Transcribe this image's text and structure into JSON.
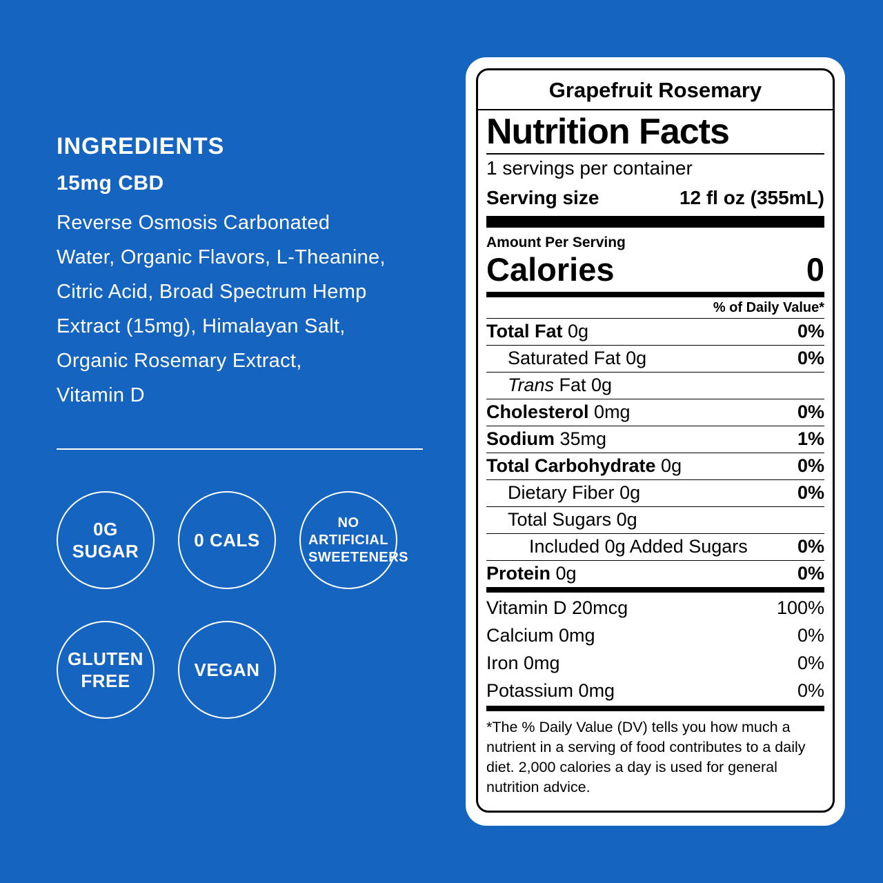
{
  "colors": {
    "background": "#1564BF",
    "label_background": "#FFFFFF",
    "text_on_blue": "#FFFFFF",
    "label_text": "#000000"
  },
  "ingredients": {
    "heading": "INGREDIENTS",
    "subheading": "15mg CBD",
    "body_lines": [
      {
        "text": "Reverse Osmosis Carbonated"
      },
      {
        "text": "Water, Organic Flavors, L-Theanine,"
      },
      {
        "text": "Citric Acid, Broad Spectrum Hemp"
      },
      {
        "text": "Extract (15mg), Himalayan Salt,"
      },
      {
        "text": "Organic Rosemary Extract,"
      },
      {
        "text": "Vitamin D"
      }
    ]
  },
  "badges": {
    "row1": [
      {
        "label": "0G SUGAR"
      },
      {
        "label": "0 CALS"
      },
      {
        "label": "NO ARTIFICIAL SWEETENERS"
      }
    ],
    "row2": [
      {
        "label": "GLUTEN FREE"
      },
      {
        "label": "VEGAN"
      }
    ]
  },
  "label": {
    "flavor": "Grapefruit Rosemary",
    "title": "Nutrition Facts",
    "servings_per_container": "1 servings per container",
    "serving_size_label": "Serving size",
    "serving_size_value": "12 fl oz (355mL)",
    "amount_per_serving": "Amount Per Serving",
    "calories_label": "Calories",
    "calories_value": "0",
    "daily_value_header": "% of Daily Value*",
    "rows": [
      {
        "lead": "Total Fat",
        "lead_style": "bold",
        "rest": "0g",
        "dv": "0%",
        "indent": 0
      },
      {
        "lead": "Saturated Fat",
        "lead_style": "plain",
        "rest": "0g",
        "dv": "0%",
        "indent": 1
      },
      {
        "lead": "Trans",
        "lead_style": "italic",
        "rest": "Fat 0g",
        "dv": "",
        "indent": 1
      },
      {
        "lead": "Cholesterol",
        "lead_style": "bold",
        "rest": "0mg",
        "dv": "0%",
        "indent": 0
      },
      {
        "lead": "Sodium",
        "lead_style": "bold",
        "rest": "35mg",
        "dv": "1%",
        "indent": 0
      },
      {
        "lead": "Total Carbohydrate",
        "lead_style": "bold",
        "rest": "0g",
        "dv": "0%",
        "indent": 0
      },
      {
        "lead": "Dietary Fiber",
        "lead_style": "plain",
        "rest": "0g",
        "dv": "0%",
        "indent": 1
      },
      {
        "lead": "Total Sugars",
        "lead_style": "plain",
        "rest": "0g",
        "dv": "",
        "indent": 1
      },
      {
        "lead": "Included",
        "lead_style": "plain",
        "rest": "0g Added Sugars",
        "dv": "0%",
        "indent": 2
      },
      {
        "lead": "Protein",
        "lead_style": "bold",
        "rest": "0g",
        "dv": "0%",
        "indent": 0
      }
    ],
    "micronutrients": [
      {
        "name": "Vitamin D 20mcg",
        "dv": "100%"
      },
      {
        "name": "Calcium 0mg",
        "dv": "0%"
      },
      {
        "name": "Iron 0mg",
        "dv": "0%"
      },
      {
        "name": "Potassium 0mg",
        "dv": "0%"
      }
    ],
    "footnote": "*The % Daily Value (DV) tells you how much a nutrient in  a serving of food contributes to a daily diet. 2,000 calories a day is used for general nutrition advice."
  }
}
